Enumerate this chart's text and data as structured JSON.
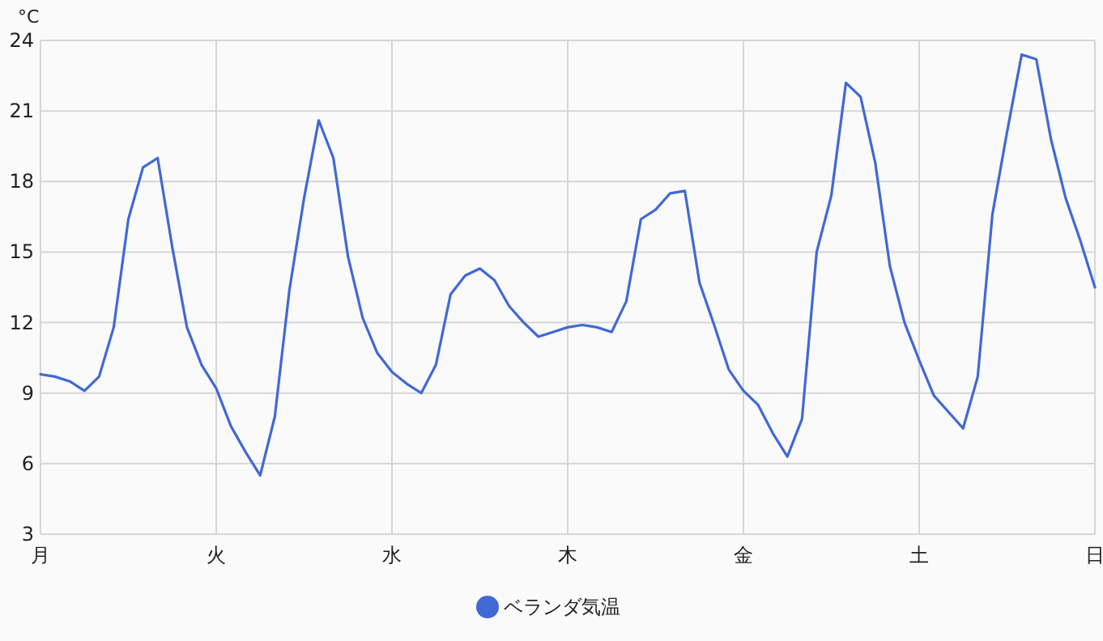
{
  "chart_data": {
    "type": "line",
    "ylabel": "°C",
    "ylim": [
      3,
      24
    ],
    "categories": [
      "月",
      null,
      null,
      null,
      null,
      null,
      null,
      null,
      null,
      null,
      null,
      null,
      "火",
      null,
      null,
      null,
      null,
      null,
      null,
      null,
      null,
      null,
      null,
      null,
      "水",
      null,
      null,
      null,
      null,
      null,
      null,
      null,
      null,
      null,
      null,
      null,
      "木",
      null,
      null,
      null,
      null,
      null,
      null,
      null,
      null,
      null,
      null,
      null,
      "金",
      null,
      null,
      null,
      null,
      null,
      null,
      null,
      null,
      null,
      null,
      null,
      "土",
      null,
      null,
      null,
      null,
      null,
      null,
      null,
      null,
      null,
      null,
      null,
      "日"
    ],
    "yticks": [
      3,
      6,
      9,
      12,
      15,
      18,
      21,
      24
    ],
    "grid": true,
    "legend": "bottom",
    "series": [
      {
        "name": "ベランダ気温",
        "color": "#4169d4",
        "values": [
          9.8,
          9.7,
          9.5,
          9.1,
          9.7,
          11.8,
          16.4,
          18.6,
          19.0,
          15.2,
          11.8,
          10.2,
          9.2,
          7.6,
          6.5,
          5.5,
          8.0,
          13.4,
          17.3,
          20.6,
          19.0,
          14.8,
          12.2,
          10.7,
          9.9,
          9.4,
          9.0,
          10.2,
          13.2,
          14.0,
          14.3,
          13.8,
          12.7,
          12.0,
          11.4,
          11.6,
          11.8,
          11.9,
          11.8,
          11.6,
          12.9,
          16.4,
          16.8,
          17.5,
          17.6,
          13.7,
          11.9,
          10.0,
          9.1,
          8.5,
          7.3,
          6.3,
          7.9,
          15.0,
          17.4,
          22.2,
          21.6,
          18.8,
          14.4,
          12.0,
          10.4,
          8.9,
          8.2,
          7.5,
          9.7,
          16.6,
          20.1,
          23.4,
          23.2,
          19.8,
          17.3,
          15.5,
          13.5
        ]
      }
    ]
  }
}
